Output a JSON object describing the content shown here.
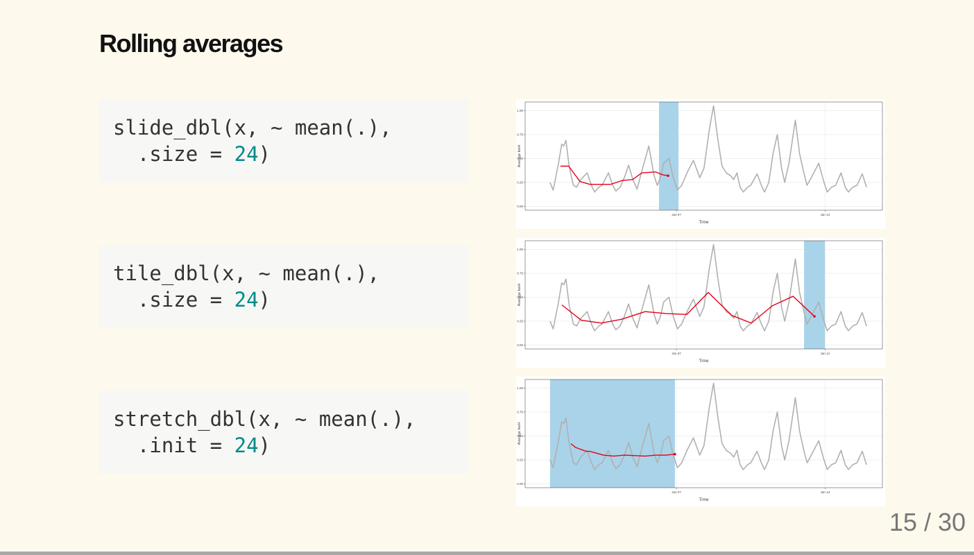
{
  "title": "Rolling averages",
  "code_blocks": [
    {
      "line1": "slide_dbl(x, ~ mean(.),",
      "line2": [
        "  .size = ",
        "24",
        ")"
      ]
    },
    {
      "line1": "tile_dbl(x, ~ mean(.),",
      "line2": [
        "  .size = ",
        "24",
        ")"
      ]
    },
    {
      "line1": "stretch_dbl(x, ~ mean(.),",
      "line2": [
        "  .init = ",
        "24",
        ")"
      ]
    }
  ],
  "page_number": "15 / 30",
  "chart_data": [
    {
      "type": "line",
      "x_label": "Time",
      "y_label": "Average kwH",
      "xlim": [
        -0.12,
        16.7
      ],
      "ylim": [
        -0.04,
        1.09
      ],
      "xticks": [
        {
          "value": 7,
          "label": "Jan 07"
        },
        {
          "value": 14,
          "label": "Jan 14"
        }
      ],
      "yticks": [
        {
          "value": 0,
          "label": "0.00"
        },
        {
          "value": 0.25,
          "label": "0.25"
        },
        {
          "value": 0.5,
          "label": "0.50"
        },
        {
          "value": 0.75,
          "label": "0.75"
        },
        {
          "value": 1,
          "label": "1.00"
        }
      ],
      "grid": true,
      "window": [
        6.18,
        7.1
      ],
      "window_color": "#a9d3e8",
      "series": [
        {
          "color": "#b0b0b0",
          "x": [
            1.05,
            1.2,
            1.45,
            1.6,
            1.7,
            1.8,
            1.95,
            2.15,
            2.3,
            2.5,
            2.8,
            3.0,
            3.15,
            3.35,
            3.5,
            3.8,
            4.0,
            4.15,
            4.35,
            4.55,
            4.75,
            4.95,
            5.15,
            5.35,
            5.7,
            5.95,
            6.1,
            6.25,
            6.4,
            6.65,
            6.85,
            7.05,
            7.25,
            7.5,
            7.8,
            8.1,
            8.3,
            8.55,
            8.75,
            8.95,
            9.15,
            9.35,
            9.55,
            9.7,
            9.85,
            10.0,
            10.15,
            10.35,
            10.5,
            10.8,
            11.0,
            11.15,
            11.35,
            11.55,
            11.75,
            11.95,
            12.1,
            12.3,
            12.6,
            12.8,
            13.0,
            13.15,
            13.35,
            13.7,
            13.95,
            14.1,
            14.3,
            14.5,
            14.75,
            14.95,
            15.1,
            15.3,
            15.5,
            15.75,
            15.95
          ],
          "values": [
            0.25,
            0.17,
            0.45,
            0.65,
            0.63,
            0.69,
            0.42,
            0.22,
            0.2,
            0.28,
            0.35,
            0.22,
            0.15,
            0.2,
            0.22,
            0.35,
            0.22,
            0.16,
            0.2,
            0.3,
            0.43,
            0.28,
            0.18,
            0.35,
            0.63,
            0.32,
            0.22,
            0.3,
            0.45,
            0.5,
            0.3,
            0.17,
            0.22,
            0.35,
            0.48,
            0.3,
            0.4,
            0.8,
            1.05,
            0.7,
            0.42,
            0.35,
            0.32,
            0.28,
            0.35,
            0.2,
            0.15,
            0.2,
            0.22,
            0.34,
            0.22,
            0.15,
            0.25,
            0.55,
            0.75,
            0.4,
            0.25,
            0.45,
            0.9,
            0.55,
            0.35,
            0.22,
            0.3,
            0.45,
            0.25,
            0.15,
            0.2,
            0.22,
            0.35,
            0.2,
            0.15,
            0.2,
            0.22,
            0.34,
            0.2
          ]
        },
        {
          "color": "#e3001b",
          "end_marker": true,
          "x": [
            1.54,
            1.93,
            2.46,
            2.92,
            3.9,
            4.45,
            4.94,
            5.37,
            6.02,
            6.35,
            6.61
          ],
          "values": [
            0.42,
            0.42,
            0.26,
            0.23,
            0.23,
            0.27,
            0.28,
            0.35,
            0.36,
            0.33,
            0.32
          ]
        }
      ]
    },
    {
      "type": "line",
      "x_label": "Time",
      "y_label": "Average kwH",
      "xlim": [
        -0.12,
        16.7
      ],
      "ylim": [
        -0.04,
        1.09
      ],
      "xticks": [
        {
          "value": 7,
          "label": "Jan 07"
        },
        {
          "value": 14,
          "label": "Jan 14"
        }
      ],
      "yticks": [
        {
          "value": 0,
          "label": "0.00"
        },
        {
          "value": 0.25,
          "label": "0.25"
        },
        {
          "value": 0.5,
          "label": "0.50"
        },
        {
          "value": 0.75,
          "label": "0.75"
        },
        {
          "value": 1,
          "label": "1.00"
        }
      ],
      "grid": true,
      "window": [
        13.01,
        13.99
      ],
      "window_color": "#a9d3e8",
      "series": [
        {
          "color": "#b0b0b0",
          "x": [
            1.05,
            1.2,
            1.45,
            1.6,
            1.7,
            1.8,
            1.95,
            2.15,
            2.3,
            2.5,
            2.8,
            3.0,
            3.15,
            3.35,
            3.5,
            3.8,
            4.0,
            4.15,
            4.35,
            4.55,
            4.75,
            4.95,
            5.15,
            5.35,
            5.7,
            5.95,
            6.1,
            6.25,
            6.4,
            6.65,
            6.85,
            7.05,
            7.25,
            7.5,
            7.8,
            8.1,
            8.3,
            8.55,
            8.75,
            8.95,
            9.15,
            9.35,
            9.55,
            9.7,
            9.85,
            10.0,
            10.15,
            10.35,
            10.5,
            10.8,
            11.0,
            11.15,
            11.35,
            11.55,
            11.75,
            11.95,
            12.1,
            12.3,
            12.6,
            12.8,
            13.0,
            13.15,
            13.35,
            13.7,
            13.95,
            14.1,
            14.3,
            14.5,
            14.75,
            14.95,
            15.1,
            15.3,
            15.5,
            15.75,
            15.95
          ],
          "values": [
            0.25,
            0.17,
            0.45,
            0.65,
            0.63,
            0.69,
            0.42,
            0.22,
            0.2,
            0.28,
            0.35,
            0.22,
            0.15,
            0.2,
            0.22,
            0.35,
            0.22,
            0.16,
            0.2,
            0.3,
            0.43,
            0.28,
            0.18,
            0.35,
            0.63,
            0.32,
            0.22,
            0.3,
            0.45,
            0.5,
            0.3,
            0.17,
            0.22,
            0.35,
            0.48,
            0.3,
            0.4,
            0.8,
            1.05,
            0.7,
            0.42,
            0.35,
            0.32,
            0.28,
            0.35,
            0.2,
            0.15,
            0.2,
            0.22,
            0.34,
            0.22,
            0.15,
            0.25,
            0.55,
            0.75,
            0.4,
            0.25,
            0.45,
            0.9,
            0.55,
            0.35,
            0.22,
            0.3,
            0.45,
            0.25,
            0.15,
            0.2,
            0.22,
            0.35,
            0.2,
            0.15,
            0.2,
            0.22,
            0.34,
            0.2
          ]
        },
        {
          "color": "#e3001b",
          "end_marker": true,
          "x": [
            1.61,
            2.52,
            3.47,
            4.42,
            5.53,
            6.51,
            7.49,
            8.5,
            9.61,
            10.53,
            11.51,
            12.49,
            13.5
          ],
          "values": [
            0.42,
            0.26,
            0.23,
            0.27,
            0.35,
            0.33,
            0.32,
            0.55,
            0.31,
            0.23,
            0.41,
            0.51,
            0.3
          ]
        }
      ]
    },
    {
      "type": "line",
      "x_label": "Time",
      "y_label": "Average kwH",
      "xlim": [
        -0.12,
        16.7
      ],
      "ylim": [
        -0.04,
        1.09
      ],
      "xticks": [
        {
          "value": 7,
          "label": "Jan 07"
        },
        {
          "value": 14,
          "label": "Jan 14"
        }
      ],
      "yticks": [
        {
          "value": 0,
          "label": "0.00"
        },
        {
          "value": 0.25,
          "label": "0.25"
        },
        {
          "value": 0.5,
          "label": "0.50"
        },
        {
          "value": 0.75,
          "label": "0.75"
        },
        {
          "value": 1,
          "label": "1.00"
        }
      ],
      "grid": true,
      "window": [
        1.05,
        6.93
      ],
      "window_color": "#a9d3e8",
      "series": [
        {
          "color": "#b0b0b0",
          "x": [
            1.05,
            1.2,
            1.45,
            1.6,
            1.7,
            1.8,
            1.95,
            2.15,
            2.3,
            2.5,
            2.8,
            3.0,
            3.15,
            3.35,
            3.5,
            3.8,
            4.0,
            4.15,
            4.35,
            4.55,
            4.75,
            4.95,
            5.15,
            5.35,
            5.7,
            5.95,
            6.1,
            6.25,
            6.4,
            6.65,
            6.85,
            7.05,
            7.25,
            7.5,
            7.8,
            8.1,
            8.3,
            8.55,
            8.75,
            8.95,
            9.15,
            9.35,
            9.55,
            9.7,
            9.85,
            10.0,
            10.15,
            10.35,
            10.5,
            10.8,
            11.0,
            11.15,
            11.35,
            11.55,
            11.75,
            11.95,
            12.1,
            12.3,
            12.6,
            12.8,
            13.0,
            13.15,
            13.35,
            13.7,
            13.95,
            14.1,
            14.3,
            14.5,
            14.75,
            14.95,
            15.1,
            15.3,
            15.5,
            15.75,
            15.95
          ],
          "values": [
            0.25,
            0.17,
            0.45,
            0.65,
            0.63,
            0.69,
            0.42,
            0.22,
            0.2,
            0.28,
            0.35,
            0.22,
            0.15,
            0.2,
            0.22,
            0.35,
            0.22,
            0.16,
            0.2,
            0.3,
            0.43,
            0.28,
            0.18,
            0.35,
            0.63,
            0.32,
            0.22,
            0.3,
            0.45,
            0.5,
            0.3,
            0.17,
            0.22,
            0.35,
            0.48,
            0.3,
            0.4,
            0.8,
            1.05,
            0.7,
            0.42,
            0.35,
            0.32,
            0.28,
            0.35,
            0.2,
            0.15,
            0.2,
            0.22,
            0.34,
            0.22,
            0.15,
            0.25,
            0.55,
            0.75,
            0.4,
            0.25,
            0.45,
            0.9,
            0.55,
            0.35,
            0.22,
            0.3,
            0.45,
            0.25,
            0.15,
            0.2,
            0.22,
            0.35,
            0.2,
            0.15,
            0.2,
            0.22,
            0.34,
            0.2
          ]
        },
        {
          "color": "#e3001b",
          "end_marker": true,
          "x": [
            2.03,
            2.26,
            2.75,
            2.92,
            3.57,
            4.06,
            4.55,
            5.53,
            6.02,
            6.51,
            6.93
          ],
          "values": [
            0.42,
            0.38,
            0.34,
            0.34,
            0.3,
            0.29,
            0.3,
            0.29,
            0.3,
            0.3,
            0.31
          ]
        }
      ]
    }
  ]
}
